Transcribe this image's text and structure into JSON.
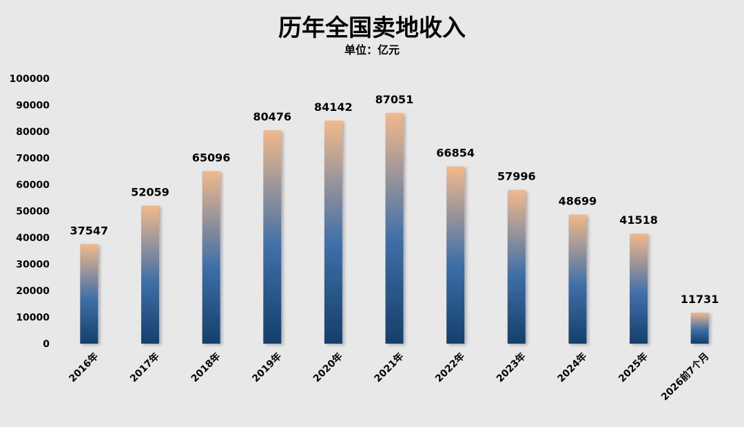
{
  "chart_data": {
    "type": "bar",
    "title": "历年全国卖地收入",
    "subtitle": "单位：亿元",
    "xlabel": "",
    "ylabel": "",
    "categories": [
      "2016年",
      "2017年",
      "2018年",
      "2019年",
      "2020年",
      "2021年",
      "2022年",
      "2023年",
      "2024年",
      "2025年",
      "2026前7个月"
    ],
    "values": [
      37547,
      52059,
      65096,
      80476,
      84142,
      87051,
      66854,
      57996,
      48699,
      41518,
      11731
    ],
    "ylim": [
      0,
      100000
    ],
    "yticks": [
      0,
      10000,
      20000,
      30000,
      40000,
      50000,
      60000,
      70000,
      80000,
      90000,
      100000
    ],
    "grid": false,
    "legend": "none",
    "colors": {
      "bar_top": "#f2b98b",
      "bar_mid": "#3f6fa8",
      "bar_bottom": "#143f6b",
      "background": "#e8e8e8"
    }
  }
}
